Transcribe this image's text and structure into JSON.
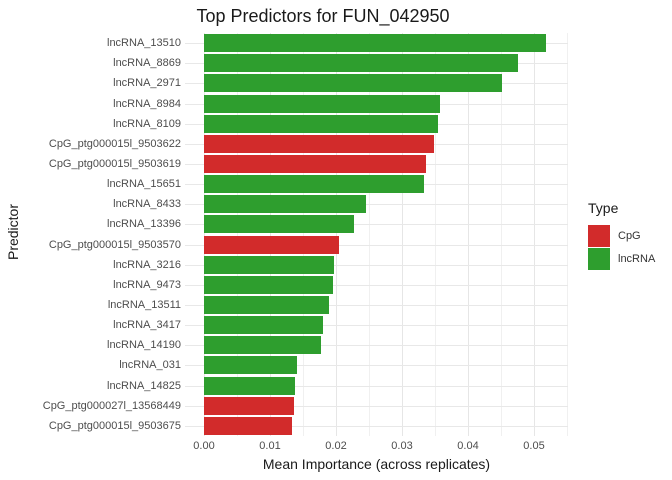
{
  "chart_data": {
    "type": "bar",
    "orientation": "horizontal",
    "title": "Top Predictors for FUN_042950",
    "xlabel": "Mean Importance (across replicates)",
    "ylabel": "Predictor",
    "xlim": [
      0,
      0.055
    ],
    "x_ticks": [
      0.0,
      0.01,
      0.02,
      0.03,
      0.04,
      0.05
    ],
    "grid": "major-and-minor-on-white",
    "legend": {
      "title": "Type",
      "position": "right",
      "entries": [
        {
          "label": "CpG",
          "color": "#d22b2b"
        },
        {
          "label": "lncRNA",
          "color": "#2e9e2e"
        }
      ]
    },
    "bars": [
      {
        "predictor": "lncRNA_13510",
        "type": "lncRNA",
        "value": 0.0518
      },
      {
        "predictor": "lncRNA_8869",
        "type": "lncRNA",
        "value": 0.0476
      },
      {
        "predictor": "lncRNA_2971",
        "type": "lncRNA",
        "value": 0.0451
      },
      {
        "predictor": "lncRNA_8984",
        "type": "lncRNA",
        "value": 0.0357
      },
      {
        "predictor": "lncRNA_8109",
        "type": "lncRNA",
        "value": 0.0354
      },
      {
        "predictor": "CpG_ptg000015l_9503622",
        "type": "CpG",
        "value": 0.0349
      },
      {
        "predictor": "CpG_ptg000015l_9503619",
        "type": "CpG",
        "value": 0.0337
      },
      {
        "predictor": "lncRNA_15651",
        "type": "lncRNA",
        "value": 0.0334
      },
      {
        "predictor": "lncRNA_8433",
        "type": "lncRNA",
        "value": 0.0245
      },
      {
        "predictor": "lncRNA_13396",
        "type": "lncRNA",
        "value": 0.0228
      },
      {
        "predictor": "CpG_ptg000015l_9503570",
        "type": "CpG",
        "value": 0.0205
      },
      {
        "predictor": "lncRNA_3216",
        "type": "lncRNA",
        "value": 0.0197
      },
      {
        "predictor": "lncRNA_9473",
        "type": "lncRNA",
        "value": 0.0196
      },
      {
        "predictor": "lncRNA_13511",
        "type": "lncRNA",
        "value": 0.0189
      },
      {
        "predictor": "lncRNA_3417",
        "type": "lncRNA",
        "value": 0.0181
      },
      {
        "predictor": "lncRNA_14190",
        "type": "lncRNA",
        "value": 0.0178
      },
      {
        "predictor": "lncRNA_031",
        "type": "lncRNA",
        "value": 0.0141
      },
      {
        "predictor": "lncRNA_14825",
        "type": "lncRNA",
        "value": 0.0138
      },
      {
        "predictor": "CpG_ptg000027l_13568449",
        "type": "CpG",
        "value": 0.0136
      },
      {
        "predictor": "CpG_ptg000015l_9503675",
        "type": "CpG",
        "value": 0.0134
      }
    ]
  }
}
